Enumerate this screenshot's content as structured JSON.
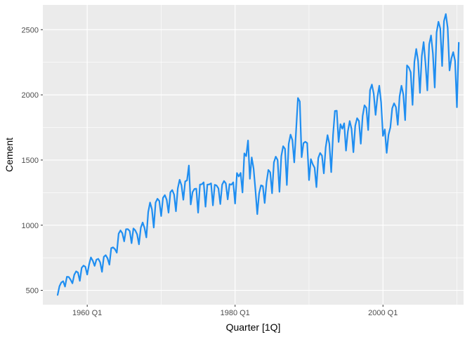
{
  "chart_data": {
    "type": "line",
    "title": "",
    "xlabel": "Quarter [1Q]",
    "ylabel": "Cement",
    "x_ticks": [
      "1960 Q1",
      "1980 Q1",
      "2000 Q1"
    ],
    "y_ticks": [
      500,
      1000,
      1500,
      2000,
      2500
    ],
    "xlim": [
      1954.0,
      2010.9
    ],
    "ylim": [
      390,
      2690
    ],
    "grid": true,
    "legend": "none",
    "colors": {
      "line": "#1f8ef1",
      "panel": "#ebebeb",
      "grid": "#ffffff"
    },
    "series": [
      {
        "x": [
          1956.0,
          1956.25,
          1956.5,
          1956.75,
          1957.0,
          1957.25,
          1957.5,
          1957.75,
          1958.0,
          1958.25,
          1958.5,
          1958.75,
          1959.0,
          1959.25,
          1959.5,
          1959.75,
          1960.0,
          1960.25,
          1960.5,
          1960.75,
          1961.0,
          1961.25,
          1961.5,
          1961.75,
          1962.0,
          1962.25,
          1962.5,
          1962.75,
          1963.0,
          1963.25,
          1963.5,
          1963.75,
          1964.0,
          1964.25,
          1964.5,
          1964.75,
          1965.0,
          1965.25,
          1965.5,
          1965.75,
          1966.0,
          1966.25,
          1966.5,
          1966.75,
          1967.0,
          1967.25,
          1967.5,
          1967.75,
          1968.0,
          1968.25,
          1968.5,
          1968.75,
          1969.0,
          1969.25,
          1969.5,
          1969.75,
          1970.0,
          1970.25,
          1970.5,
          1970.75,
          1971.0,
          1971.25,
          1971.5,
          1971.75,
          1972.0,
          1972.25,
          1972.5,
          1972.75,
          1973.0,
          1973.25,
          1973.5,
          1973.75,
          1974.0,
          1974.25,
          1974.5,
          1974.75,
          1975.0,
          1975.25,
          1975.5,
          1975.75,
          1976.0,
          1976.25,
          1976.5,
          1976.75,
          1977.0,
          1977.25,
          1977.5,
          1977.75,
          1978.0,
          1978.25,
          1978.5,
          1978.75,
          1979.0,
          1979.25,
          1979.5,
          1979.75,
          1980.0,
          1980.25,
          1980.5,
          1980.75,
          1981.0,
          1981.25,
          1981.5,
          1981.75,
          1982.0,
          1982.25,
          1982.5,
          1982.75,
          1983.0,
          1983.25,
          1983.5,
          1983.75,
          1984.0,
          1984.25,
          1984.5,
          1984.75,
          1985.0,
          1985.25,
          1985.5,
          1985.75,
          1986.0,
          1986.25,
          1986.5,
          1986.75,
          1987.0,
          1987.25,
          1987.5,
          1987.75,
          1988.0,
          1988.25,
          1988.5,
          1988.75,
          1989.0,
          1989.25,
          1989.5,
          1989.75,
          1990.0,
          1990.25,
          1990.5,
          1990.75,
          1991.0,
          1991.25,
          1991.5,
          1991.75,
          1992.0,
          1992.25,
          1992.5,
          1992.75,
          1993.0,
          1993.25,
          1993.5,
          1993.75,
          1994.0,
          1994.25,
          1994.5,
          1994.75,
          1995.0,
          1995.25,
          1995.5,
          1995.75,
          1996.0,
          1996.25,
          1996.5,
          1996.75,
          1997.0,
          1997.25,
          1997.5,
          1997.75,
          1998.0,
          1998.25,
          1998.5,
          1998.75,
          1999.0,
          1999.25,
          1999.5,
          1999.75,
          2000.0,
          2000.25,
          2000.5,
          2000.75,
          2001.0,
          2001.25,
          2001.5,
          2001.75,
          2002.0,
          2002.25,
          2002.5,
          2002.75,
          2003.0,
          2003.25,
          2003.5,
          2003.75,
          2004.0,
          2004.25,
          2004.5,
          2004.75,
          2005.0,
          2005.25,
          2005.5,
          2005.75,
          2006.0,
          2006.25,
          2006.5,
          2006.75,
          2007.0,
          2007.25,
          2007.5,
          2007.75,
          2008.0,
          2008.25,
          2008.5,
          2008.75,
          2009.0,
          2009.25,
          2009.5,
          2009.75,
          2010.0,
          2010.25
        ],
        "y": [
          465,
          532,
          561,
          570,
          529,
          604,
          603,
          582,
          554,
          620,
          646,
          637,
          573,
          673,
          690,
          681,
          621,
          698,
          753,
          728,
          688,
          736,
          742,
          715,
          642,
          758,
          770,
          746,
          697,
          825,
          830,
          816,
          789,
          935,
          960,
          939,
          876,
          969,
          970,
          955,
          862,
          975,
          960,
          930,
          853,
          981,
          1021,
          979,
          906,
          1101,
          1174,
          1123,
          982,
          1174,
          1203,
          1186,
          1070,
          1210,
          1231,
          1195,
          1096,
          1253,
          1270,
          1235,
          1107,
          1283,
          1349,
          1306,
          1195,
          1336,
          1344,
          1458,
          1159,
          1254,
          1278,
          1280,
          1096,
          1312,
          1314,
          1329,
          1142,
          1311,
          1313,
          1321,
          1152,
          1310,
          1304,
          1282,
          1162,
          1311,
          1339,
          1320,
          1198,
          1315,
          1311,
          1329,
          1166,
          1400,
          1374,
          1401,
          1251,
          1551,
          1530,
          1650,
          1356,
          1520,
          1435,
          1270,
          1085,
          1245,
          1306,
          1300,
          1170,
          1329,
          1424,
          1406,
          1245,
          1482,
          1526,
          1500,
          1256,
          1530,
          1606,
          1586,
          1308,
          1624,
          1695,
          1653,
          1482,
          1726,
          1976,
          1949,
          1522,
          1630,
          1640,
          1630,
          1346,
          1507,
          1468,
          1441,
          1292,
          1516,
          1554,
          1534,
          1398,
          1595,
          1691,
          1625,
          1407,
          1694,
          1877,
          1878,
          1638,
          1775,
          1740,
          1782,
          1572,
          1719,
          1799,
          1739,
          1560,
          1763,
          1821,
          1800,
          1625,
          1838,
          1920,
          1900,
          1730,
          2036,
          2079,
          2009,
          1846,
          1984,
          2070,
          1941,
          1685,
          1735,
          1555,
          1694,
          1750,
          1897,
          1935,
          1906,
          1770,
          1989,
          2070,
          2004,
          1806,
          2226,
          2210,
          2173,
          1923,
          2253,
          2352,
          2260,
          2015,
          2298,
          2405,
          2242,
          2034,
          2388,
          2456,
          2318,
          2056,
          2479,
          2561,
          2510,
          2221,
          2566,
          2620,
          2514,
          2187,
          2279,
          2328,
          2262,
          1905,
          2400
        ]
      }
    ]
  }
}
